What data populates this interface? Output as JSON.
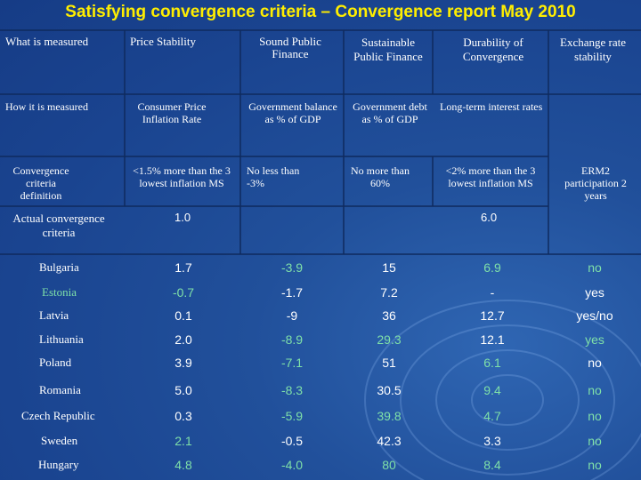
{
  "title": "Satisfying convergence criteria – Convergence report May 2010",
  "headers": {
    "measured": "What is measured",
    "price": "Price Stability",
    "sound": "Sound Public Finance",
    "sustainable": "Sustainable Public Finance",
    "durability": "Durability of Convergence",
    "exchange": "Exchange rate stability"
  },
  "how": {
    "label": "How it is measured",
    "price": "Consumer Price Inflation Rate",
    "sound": "Government balance as % of GDP",
    "sustainable": "Government debt as % of GDP",
    "durability": "Long-term interest rates"
  },
  "criteria": {
    "label": "Convergence criteria definition",
    "price": "<1.5% more than the 3 lowest inflation MS",
    "sound": "No less than -3%",
    "sustainable": "No more than 60%",
    "durability": "<2% more than the 3 lowest inflation MS",
    "exchange": "ERM2 participation 2 years"
  },
  "actual": {
    "label": "Actual convergence criteria",
    "price": "1.0",
    "durability": "6.0"
  },
  "countries": [
    {
      "name": "Bulgaria",
      "price": "1.7",
      "sound": "-3.9",
      "debt": "15",
      "rate": "6.9",
      "erm": "no",
      "colors": [
        "wh",
        "gr",
        "wh",
        "gr",
        "gr"
      ]
    },
    {
      "name": "Estonia",
      "price": "-0.7",
      "sound": "-1.7",
      "debt": "7.2",
      "rate": "-",
      "erm": "yes",
      "colors": [
        "gr",
        "wh",
        "wh",
        "wh",
        "wh"
      ]
    },
    {
      "name": "Latvia",
      "price": "0.1",
      "sound": "-9",
      "debt": "36",
      "rate": "12.7",
      "erm": "yes/no",
      "colors": [
        "wh",
        "wh",
        "wh",
        "wh",
        "wh"
      ]
    },
    {
      "name": "Lithuania",
      "price": "2.0",
      "sound": "-8.9",
      "debt": "29.3",
      "rate": "12.1",
      "erm": "yes",
      "colors": [
        "wh",
        "gr",
        "gr",
        "wh",
        "gr"
      ]
    },
    {
      "name": "Poland",
      "price": "3.9",
      "sound": "-7.1",
      "debt": "51",
      "rate": "6.1",
      "erm": "no",
      "colors": [
        "wh",
        "gr",
        "wh",
        "gr",
        "wh"
      ]
    },
    {
      "name": "Romania",
      "price": "5.0",
      "sound": "-8.3",
      "debt": "30.5",
      "rate": "9.4",
      "erm": "no",
      "colors": [
        "wh",
        "gr",
        "wh",
        "gr",
        "gr"
      ]
    },
    {
      "name": "Czech Republic",
      "price": "0.3",
      "sound": "-5.9",
      "debt": "39.8",
      "rate": "4.7",
      "erm": "no",
      "colors": [
        "wh",
        "gr",
        "gr",
        "gr",
        "gr"
      ]
    },
    {
      "name": "Sweden",
      "price": "2.1",
      "sound": "-0.5",
      "debt": "42.3",
      "rate": "3.3",
      "erm": "no",
      "colors": [
        "gr",
        "wh",
        "wh",
        "wh",
        "gr"
      ]
    },
    {
      "name": "Hungary",
      "price": "4.8",
      "sound": "-4.0",
      "debt": "80",
      "rate": "8.4",
      "erm": "no",
      "colors": [
        "gr",
        "gr",
        "gr",
        "gr",
        "gr"
      ]
    }
  ],
  "colors": {
    "title": "#ffee00",
    "background": "#1d4894",
    "lines": "#0f2a5e",
    "highlight": "#7fe0a8"
  }
}
